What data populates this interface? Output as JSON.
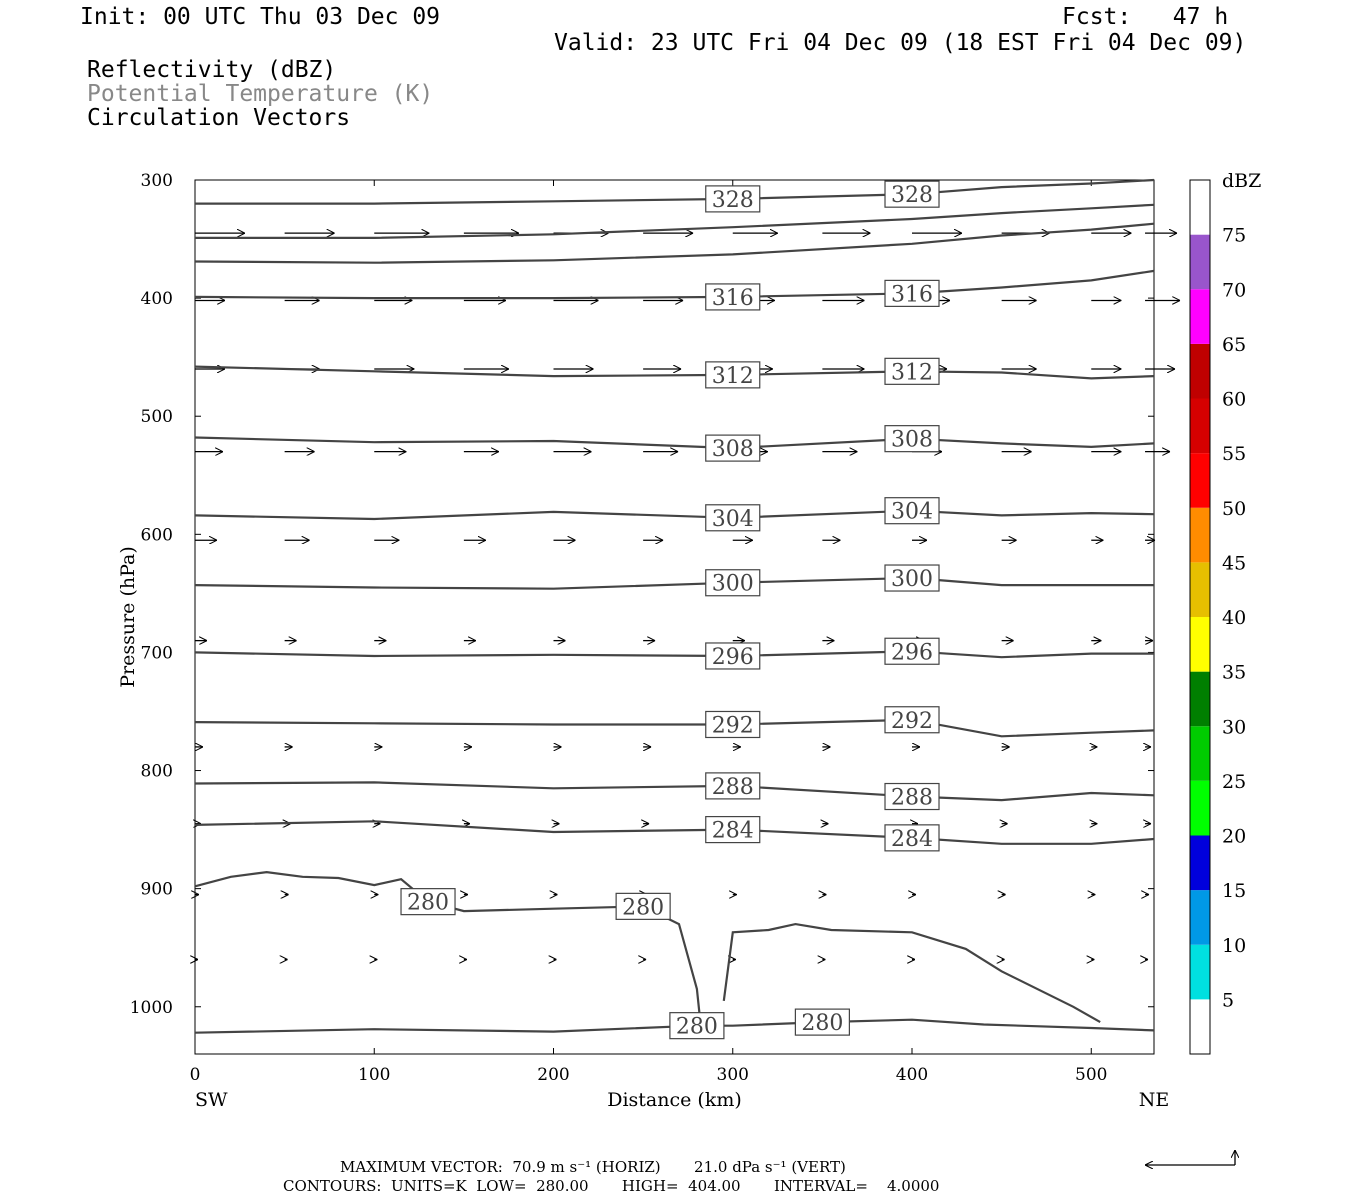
{
  "header": {
    "init": "Init: 00 UTC Thu 03 Dec 09",
    "fcst": "Fcst:   47 h",
    "valid": "Valid: 23 UTC Fri 04 Dec 09 (18 EST Fri 04 Dec 09)",
    "field1": "Reflectivity (dBZ)",
    "field2": "Potential Temperature (K)",
    "field3": "Circulation Vectors"
  },
  "footer": {
    "max_vector": "MAXIMUM VECTOR:  70.9 m s⁻¹ (HORIZ)       21.0 dPa s⁻¹ (VERT)",
    "contours": "CONTOURS:  UNITS=K  LOW=  280.00       HIGH=  404.00       INTERVAL=    4.0000"
  },
  "colorbar": {
    "unit": "dBZ",
    "levels": [
      "5",
      "10",
      "15",
      "20",
      "25",
      "30",
      "35",
      "40",
      "45",
      "50",
      "55",
      "60",
      "65",
      "70",
      "75"
    ],
    "colors": [
      "#00e0e0",
      "#0099e6",
      "#0000dd",
      "#00ff00",
      "#00cc00",
      "#007f00",
      "#ffff00",
      "#e6bf00",
      "#ff8c00",
      "#ff0000",
      "#d60000",
      "#bf0000",
      "#ff00ff",
      "#9955cc",
      "#ffffff"
    ]
  },
  "chart_data": {
    "type": "line",
    "xlabel": "Distance (km)",
    "ylabel": "Pressure (hPa)",
    "xlim": [
      0,
      535
    ],
    "ylim": [
      1040,
      300
    ],
    "x_ticks": [
      "0",
      "100",
      "200",
      "300",
      "400",
      "500"
    ],
    "y_ticks": [
      "300",
      "400",
      "500",
      "600",
      "700",
      "800",
      "900",
      "1000"
    ],
    "x_end_labels": {
      "left": "SW",
      "right": "NE"
    },
    "contour_color": "#444444",
    "isentropes": [
      {
        "label": "328",
        "x": [
          0,
          100,
          200,
          300,
          400,
          450,
          500,
          535
        ],
        "p": [
          320,
          320,
          318,
          316,
          312,
          306,
          303,
          300
        ]
      },
      {
        "label": "",
        "x": [
          0,
          100,
          200,
          300,
          400,
          450,
          500,
          535
        ],
        "p": [
          349,
          349,
          346,
          340,
          333,
          328,
          324,
          321
        ]
      },
      {
        "label": "",
        "x": [
          0,
          100,
          200,
          300,
          400,
          450,
          500,
          535
        ],
        "p": [
          369,
          370,
          368,
          363,
          354,
          347,
          342,
          337
        ]
      },
      {
        "label": "316",
        "x": [
          0,
          100,
          200,
          300,
          400,
          450,
          500,
          535
        ],
        "p": [
          399,
          400,
          400,
          399,
          396,
          391,
          385,
          377
        ]
      },
      {
        "label": "312",
        "x": [
          0,
          100,
          200,
          300,
          400,
          450,
          500,
          535
        ],
        "p": [
          458,
          462,
          466,
          465,
          462,
          463,
          468,
          466
        ]
      },
      {
        "label": "308",
        "x": [
          0,
          100,
          200,
          300,
          400,
          450,
          500,
          535
        ],
        "p": [
          518,
          522,
          521,
          527,
          519,
          523,
          526,
          523
        ]
      },
      {
        "label": "304",
        "x": [
          0,
          100,
          200,
          300,
          400,
          450,
          500,
          535
        ],
        "p": [
          584,
          587,
          581,
          586,
          580,
          584,
          582,
          583
        ]
      },
      {
        "label": "300",
        "x": [
          0,
          100,
          200,
          300,
          400,
          450,
          500,
          535
        ],
        "p": [
          643,
          645,
          646,
          641,
          637,
          643,
          643,
          643
        ]
      },
      {
        "label": "296",
        "x": [
          0,
          100,
          200,
          300,
          400,
          450,
          500,
          535
        ],
        "p": [
          700,
          703,
          702,
          703,
          699,
          704,
          701,
          701
        ]
      },
      {
        "label": "292",
        "x": [
          0,
          100,
          200,
          300,
          400,
          450,
          500,
          535
        ],
        "p": [
          759,
          760,
          761,
          761,
          757,
          771,
          768,
          766
        ]
      },
      {
        "label": "288",
        "x": [
          0,
          100,
          200,
          300,
          400,
          450,
          500,
          535
        ],
        "p": [
          811,
          810,
          815,
          813,
          822,
          825,
          819,
          821
        ]
      },
      {
        "label": "284",
        "x": [
          0,
          100,
          200,
          300,
          400,
          450,
          500,
          535
        ],
        "p": [
          846,
          843,
          852,
          850,
          857,
          862,
          862,
          858
        ]
      },
      {
        "label": "280",
        "x": [
          0,
          20,
          40,
          60,
          80,
          100,
          115,
          130,
          150,
          200,
          250,
          270,
          280,
          282
        ],
        "p": [
          898,
          890,
          886,
          890,
          891,
          897,
          892,
          911,
          919,
          917,
          915,
          930,
          985,
          1014
        ]
      },
      {
        "label": "",
        "x": [
          295,
          300,
          320,
          335,
          355,
          400,
          430,
          450,
          490,
          505
        ],
        "p": [
          995,
          937,
          935,
          930,
          935,
          937,
          951,
          970,
          1000,
          1013
        ]
      },
      {
        "label": "280",
        "x": [
          0,
          100,
          200,
          280,
          300,
          350,
          400,
          440,
          500,
          535
        ],
        "p": [
          1022,
          1019,
          1021,
          1016,
          1016,
          1013,
          1011,
          1015,
          1018,
          1020
        ]
      }
    ],
    "vectors": {
      "levels_hPa": [
        345,
        402,
        460,
        530,
        605,
        690,
        780,
        845,
        905,
        960
      ],
      "x_km": [
        0,
        50,
        100,
        150,
        200,
        250,
        300,
        350,
        400,
        450,
        500,
        530
      ],
      "u_px": [
        [
          50,
          50,
          55,
          55,
          55,
          50,
          45,
          48,
          50,
          48,
          40,
          32
        ],
        [
          30,
          35,
          38,
          42,
          45,
          40,
          42,
          42,
          38,
          35,
          30,
          35
        ],
        [
          30,
          35,
          40,
          45,
          40,
          38,
          40,
          42,
          35,
          35,
          30,
          30
        ],
        [
          28,
          30,
          32,
          35,
          38,
          35,
          35,
          35,
          30,
          30,
          30,
          25
        ],
        [
          22,
          25,
          25,
          22,
          22,
          20,
          20,
          18,
          15,
          15,
          12,
          10
        ],
        [
          12,
          12,
          12,
          12,
          12,
          12,
          12,
          12,
          12,
          12,
          10,
          8
        ],
        [
          8,
          8,
          8,
          8,
          8,
          8,
          8,
          8,
          8,
          8,
          6,
          6
        ],
        [
          6,
          6,
          6,
          6,
          6,
          6,
          6,
          6,
          6,
          6,
          6,
          6
        ],
        [
          4,
          4,
          4,
          4,
          4,
          4,
          4,
          4,
          4,
          4,
          4,
          4
        ],
        [
          3,
          3,
          3,
          3,
          3,
          3,
          3,
          3,
          3,
          3,
          3,
          3
        ]
      ]
    }
  }
}
